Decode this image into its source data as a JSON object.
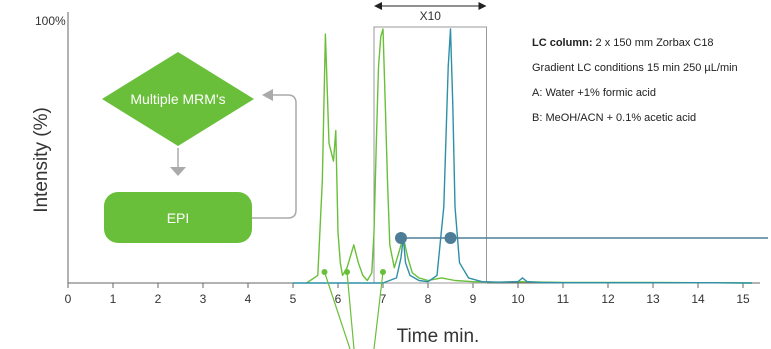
{
  "chart_data": {
    "type": "line",
    "xlabel": "Time min.",
    "ylabel": "Intensity (%)",
    "y_top_label": "100%",
    "xlim": [
      0,
      15.2
    ],
    "ylim": [
      0,
      100
    ],
    "x_ticks": [
      0,
      1,
      2,
      3,
      4,
      5,
      6,
      7,
      8,
      9,
      10,
      11,
      12,
      13,
      14,
      15
    ],
    "series": [
      {
        "color": "#6abf3a",
        "x": [
          5.3,
          5.55,
          5.65,
          5.72,
          5.8,
          5.9,
          5.95,
          6.0,
          6.05,
          6.1,
          6.2,
          6.35,
          6.45,
          6.55,
          6.65,
          6.75,
          6.8,
          6.85,
          6.9,
          6.95,
          7.0,
          7.05,
          7.1,
          7.15,
          7.25,
          7.35,
          7.45,
          7.55,
          7.65,
          7.8,
          8.0,
          8.3,
          8.6,
          9.0,
          9.5,
          10.0,
          11.0,
          12.0,
          13.0,
          14.0,
          15.2
        ],
        "y": [
          0,
          3,
          40,
          98,
          55,
          48,
          60,
          20,
          8,
          3,
          6,
          15,
          8,
          3,
          1,
          4,
          20,
          55,
          85,
          97,
          100,
          70,
          40,
          15,
          6,
          12,
          18,
          10,
          4,
          2,
          1,
          2,
          1,
          0.5,
          0.3,
          0.5,
          0.2,
          0.2,
          0.2,
          0.1,
          0
        ]
      },
      {
        "color": "#2f8fa8",
        "x": [
          5.0,
          6.0,
          7.0,
          7.3,
          7.4,
          7.45,
          7.5,
          7.6,
          7.8,
          8.0,
          8.2,
          8.35,
          8.45,
          8.5,
          8.55,
          8.6,
          8.7,
          8.9,
          9.2,
          9.6,
          10.0,
          10.1,
          10.2,
          10.5,
          11.0,
          12.0,
          13.0,
          14.0,
          15.2
        ],
        "y": [
          0,
          0,
          0,
          2,
          10,
          18,
          8,
          3,
          1,
          0.5,
          3,
          30,
          85,
          100,
          70,
          30,
          8,
          2,
          0.5,
          0.3,
          0.5,
          2,
          0.5,
          0.2,
          0.1,
          0.1,
          0.1,
          0.1,
          0
        ]
      }
    ],
    "zoom_box": {
      "label": "X10",
      "x_range": [
        6.8,
        9.3
      ]
    },
    "annotation_markers": [
      7.4,
      8.5
    ],
    "peak_pins": [
      5.7,
      6.2,
      7.0
    ],
    "info": {
      "line1_bold": "LC column:",
      "line1_rest": " 2 x 150 mm Zorbax C18",
      "line2": "Gradient LC conditions 15 min 250 µL/min",
      "line3": "A: Water +1% formic acid",
      "line4": "B: MeOH/ACN + 0.1% acetic acid"
    },
    "flow": {
      "diamond_label": "Multiple MRM's",
      "box_label": "EPI"
    },
    "colors": {
      "green": "#6abf3a",
      "teal": "#2f8fa8",
      "marker": "#4e7e97",
      "grey": "#aaaaaa"
    }
  }
}
